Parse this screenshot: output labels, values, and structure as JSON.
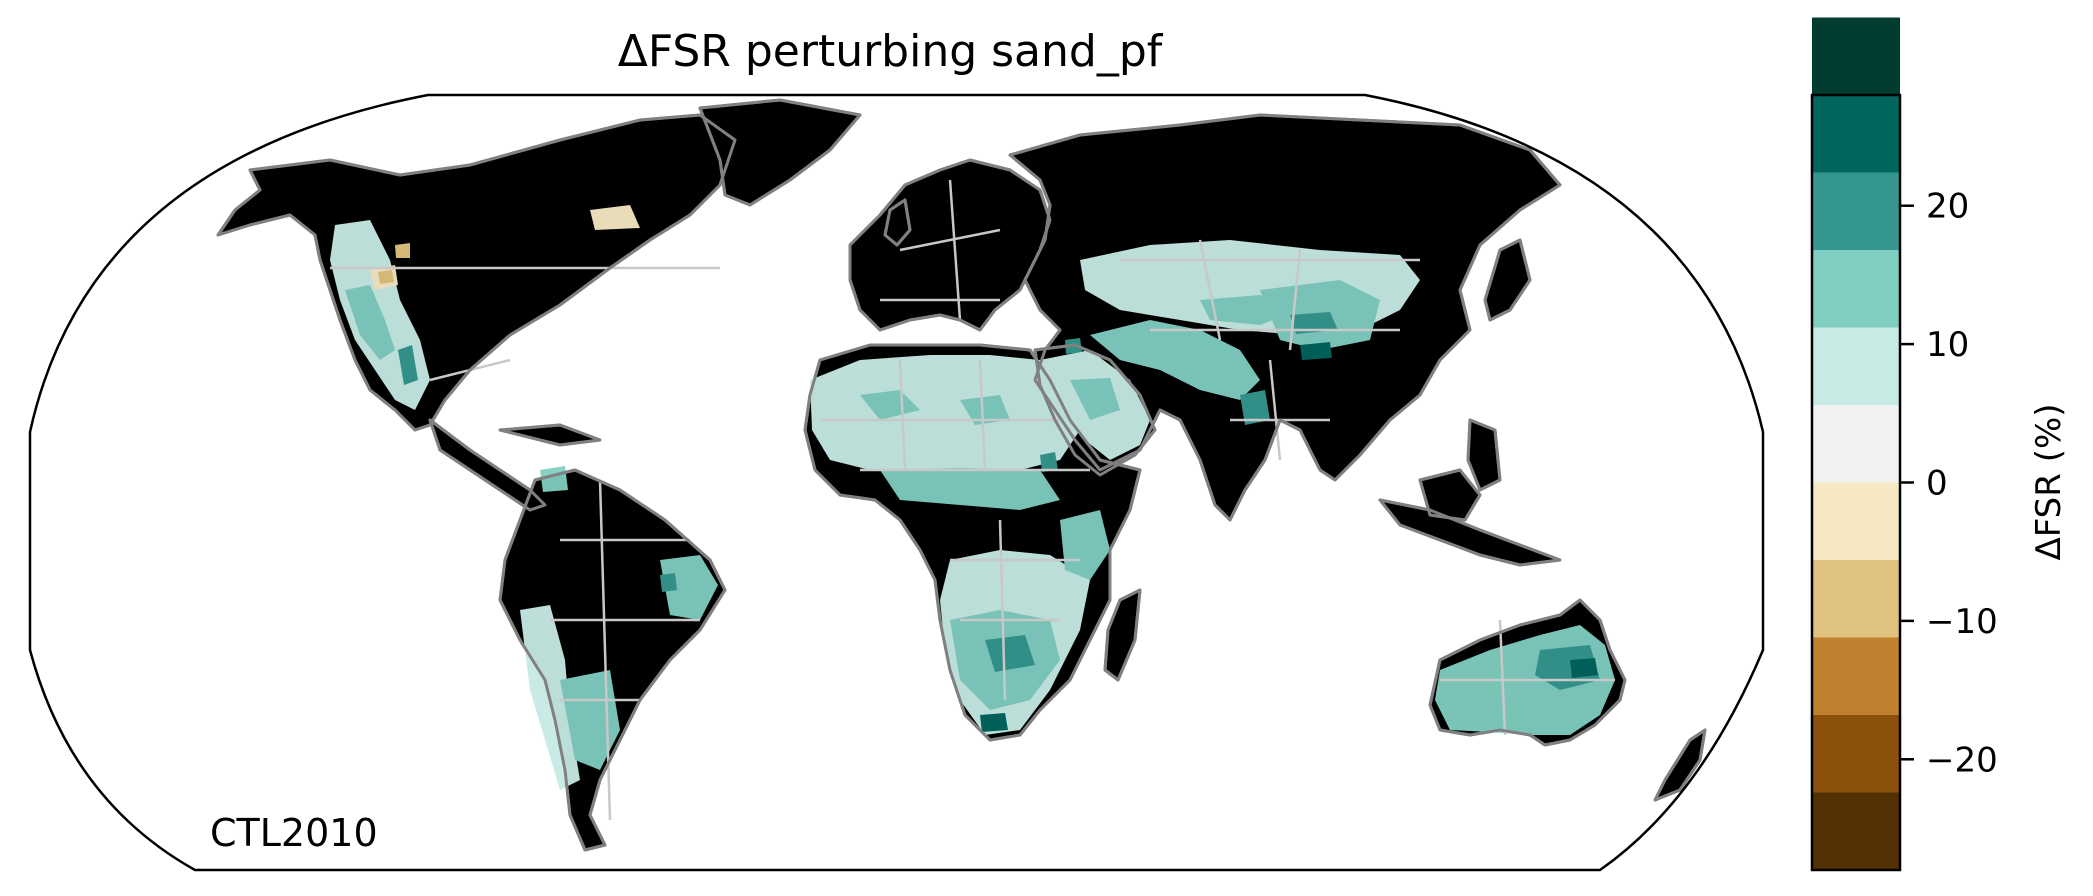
{
  "title": "ΔFSR perturbing sand_pf",
  "map_label": "CTL2010",
  "colorbar": {
    "label": "ΔFSR (%)",
    "range": [
      -28,
      28
    ],
    "step": 5.6,
    "colors": [
      "#543005",
      "#8c510a",
      "#bf812d",
      "#dfc27d",
      "#f6e8c3",
      "#f2f2f2",
      "#c7eae5",
      "#80cdc1",
      "#35978f",
      "#01665e",
      "#003c30"
    ],
    "ticks": [
      {
        "value": 20,
        "label": "20"
      },
      {
        "value": 10,
        "label": "10"
      },
      {
        "value": 0,
        "label": "0"
      },
      {
        "value": -10,
        "label": "−10"
      },
      {
        "value": -20,
        "label": "−20"
      }
    ]
  },
  "map": {
    "projection": "Robinson",
    "land_fill": "#f2f2f2",
    "coastline_color": "#808080",
    "border_color": "#c8c8c8",
    "positive_regions": [
      {
        "name": "Western North America",
        "level": 1
      },
      {
        "name": "Sahara and Sahel",
        "level": 1
      },
      {
        "name": "Arabian Peninsula and Middle East",
        "level": 2
      },
      {
        "name": "Central Asia",
        "level": 2
      },
      {
        "name": "Southern Africa",
        "level": 2
      },
      {
        "name": "Australia",
        "level": 2
      },
      {
        "name": "Eastern Brazil",
        "level": 2
      },
      {
        "name": "Argentina and Andes",
        "level": 1
      }
    ],
    "negative_regions": [
      {
        "name": "Pacific Northwest",
        "level": -1
      },
      {
        "name": "Hudson Bay",
        "level": -1
      }
    ]
  }
}
